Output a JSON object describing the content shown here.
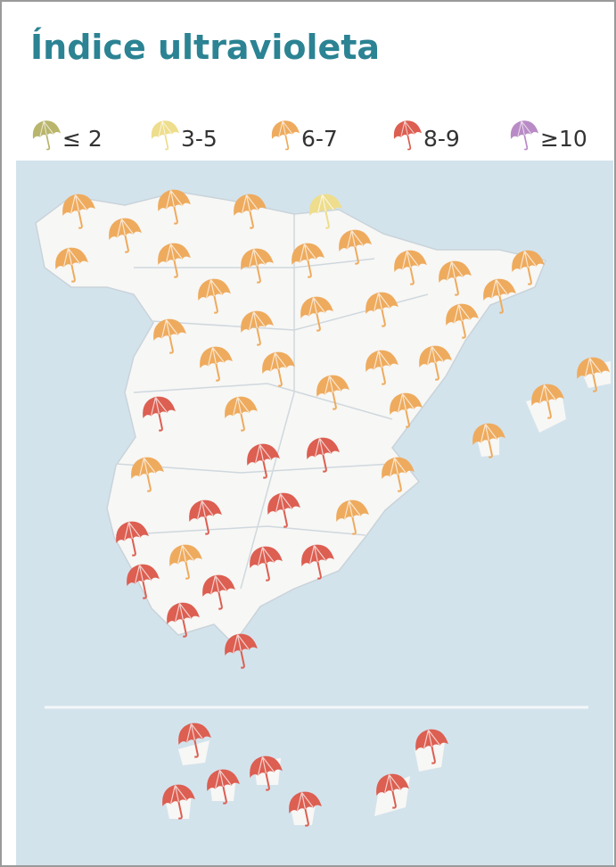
{
  "header": {
    "title": "Índice ultravioleta"
  },
  "legend": [
    {
      "label": "≤ 2",
      "color": "#b9b56c"
    },
    {
      "label": "3-5",
      "color": "#eedd8c"
    },
    {
      "label": "6-7",
      "color": "#eeab5e"
    },
    {
      "label": "8-9",
      "color": "#dc5f52"
    },
    {
      "label": "≥10",
      "color": "#b98bc6"
    }
  ]
}
